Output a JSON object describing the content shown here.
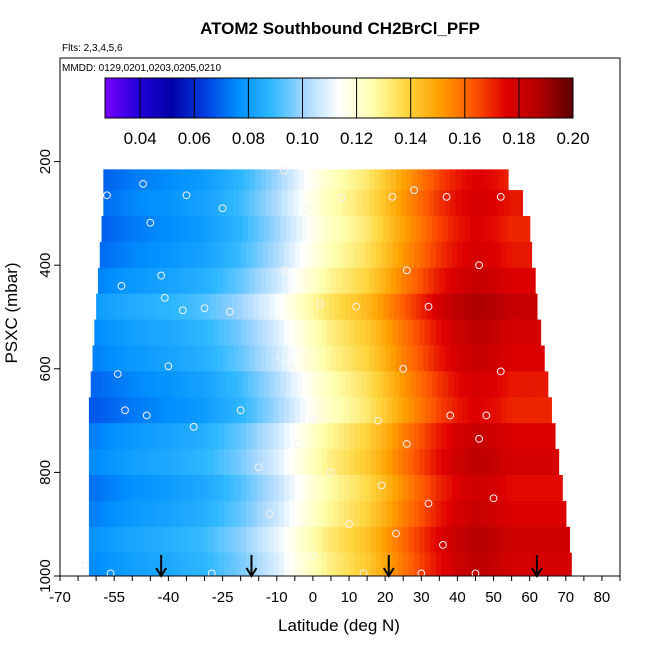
{
  "chart_data": {
    "type": "heatmap",
    "title": "ATOM2 Southbound CH2BrCl_PFP",
    "notes": {
      "flights": "Flts: 2,3,4,5,6",
      "dates": "MMDD: 0129,0201,0203,0205,0210"
    },
    "xlabel": "Latitude (deg N)",
    "ylabel": "PSXC (mbar)",
    "xlim": [
      -70,
      85
    ],
    "ylim": [
      1000,
      0
    ],
    "x_ticks": [
      -70,
      -55,
      -40,
      -25,
      -10,
      0,
      10,
      20,
      30,
      40,
      50,
      60,
      70,
      80
    ],
    "x_tick_labels": [
      "-70",
      "-55",
      "-40",
      "-25",
      "-10",
      "0",
      "10",
      "20",
      "30",
      "40",
      "50",
      "60",
      "70",
      "80"
    ],
    "y_ticks": [
      200,
      400,
      600,
      800,
      1000
    ],
    "y_tick_labels": [
      "200",
      "400",
      "600",
      "800",
      "1000"
    ],
    "colorbar": {
      "min": 0.027,
      "max": 0.2,
      "ticks": [
        0.04,
        0.06,
        0.08,
        0.1,
        0.12,
        0.14,
        0.16,
        0.18,
        0.2
      ],
      "tick_labels": [
        "0.04",
        "0.06",
        "0.08",
        "0.10",
        "0.12",
        "0.14",
        "0.16",
        "0.18",
        "0.20"
      ],
      "colors": [
        "#7a00ff",
        "#2200d8",
        "#0000a8",
        "#003fe0",
        "#0090ff",
        "#30b8ff",
        "#a8d8ff",
        "#ffffff",
        "#ffffb0",
        "#ffd640",
        "#ffa000",
        "#ff5800",
        "#e00000",
        "#b00000",
        "#5c0000"
      ]
    },
    "profile": {
      "lat": [
        -60,
        -50,
        -40,
        -30,
        -20,
        -10,
        -5,
        0,
        5,
        10,
        15,
        20,
        25,
        30,
        35,
        40,
        45,
        50,
        55
      ],
      "values": [
        0.07,
        0.075,
        0.078,
        0.082,
        0.09,
        0.102,
        0.11,
        0.118,
        0.125,
        0.13,
        0.135,
        0.143,
        0.152,
        0.16,
        0.168,
        0.174,
        0.178,
        0.176,
        0.172
      ]
    },
    "layers": [
      {
        "p": 230,
        "lat_min": -58,
        "lat_max": 54,
        "offset": -0.002
      },
      {
        "p": 280,
        "lat_min": -58,
        "lat_max": 58,
        "offset": 0.0
      },
      {
        "p": 330,
        "lat_min": -58.5,
        "lat_max": 60,
        "offset": -0.002
      },
      {
        "p": 380,
        "lat_min": -59,
        "lat_max": 60.5,
        "offset": 0.0
      },
      {
        "p": 430,
        "lat_min": -59.5,
        "lat_max": 61.5,
        "offset": 0.004
      },
      {
        "p": 480,
        "lat_min": -60,
        "lat_max": 62,
        "offset": 0.01
      },
      {
        "p": 530,
        "lat_min": -60.5,
        "lat_max": 63,
        "offset": 0.006
      },
      {
        "p": 580,
        "lat_min": -61,
        "lat_max": 64,
        "offset": 0.004
      },
      {
        "p": 630,
        "lat_min": -61.5,
        "lat_max": 65,
        "offset": 0.0
      },
      {
        "p": 680,
        "lat_min": -62,
        "lat_max": 66,
        "offset": -0.002
      },
      {
        "p": 730,
        "lat_min": -62,
        "lat_max": 67,
        "offset": 0.004
      },
      {
        "p": 780,
        "lat_min": -62,
        "lat_max": 68,
        "offset": 0.006
      },
      {
        "p": 830,
        "lat_min": -62,
        "lat_max": 69,
        "offset": 0.002
      },
      {
        "p": 880,
        "lat_min": -62,
        "lat_max": 70,
        "offset": 0.004
      },
      {
        "p": 930,
        "lat_min": -62,
        "lat_max": 71,
        "offset": 0.008
      },
      {
        "p": 980,
        "lat_min": -62,
        "lat_max": 71.5,
        "offset": 0.006
      }
    ],
    "samples": [
      {
        "lat": -57,
        "p": 265
      },
      {
        "lat": -45,
        "p": 318
      },
      {
        "lat": -35,
        "p": 265
      },
      {
        "lat": -25,
        "p": 290
      },
      {
        "lat": -2,
        "p": 290
      },
      {
        "lat": 8,
        "p": 270
      },
      {
        "lat": 22,
        "p": 268
      },
      {
        "lat": 37,
        "p": 268
      },
      {
        "lat": 52,
        "p": 268
      },
      {
        "lat": -47,
        "p": 243
      },
      {
        "lat": -8,
        "p": 218
      },
      {
        "lat": 28,
        "p": 255
      },
      {
        "lat": -53,
        "p": 440
      },
      {
        "lat": -42,
        "p": 420
      },
      {
        "lat": -8,
        "p": 410
      },
      {
        "lat": 26,
        "p": 410
      },
      {
        "lat": 46,
        "p": 400
      },
      {
        "lat": -41,
        "p": 463
      },
      {
        "lat": -36,
        "p": 487
      },
      {
        "lat": -30,
        "p": 483
      },
      {
        "lat": -23,
        "p": 490
      },
      {
        "lat": 2,
        "p": 475
      },
      {
        "lat": 12,
        "p": 480
      },
      {
        "lat": 32,
        "p": 480
      },
      {
        "lat": -54,
        "p": 610
      },
      {
        "lat": -40,
        "p": 595
      },
      {
        "lat": -9,
        "p": 580
      },
      {
        "lat": -6,
        "p": 600
      },
      {
        "lat": 25,
        "p": 600
      },
      {
        "lat": 52,
        "p": 605
      },
      {
        "lat": -52,
        "p": 680
      },
      {
        "lat": -46,
        "p": 690
      },
      {
        "lat": -33,
        "p": 712
      },
      {
        "lat": -20,
        "p": 680
      },
      {
        "lat": 0,
        "p": 700
      },
      {
        "lat": 18,
        "p": 700
      },
      {
        "lat": 38,
        "p": 690
      },
      {
        "lat": 48,
        "p": 690
      },
      {
        "lat": -4,
        "p": 745
      },
      {
        "lat": 26,
        "p": 745
      },
      {
        "lat": 46,
        "p": 735
      },
      {
        "lat": -15,
        "p": 790
      },
      {
        "lat": 5,
        "p": 800
      },
      {
        "lat": 19,
        "p": 825
      },
      {
        "lat": 32,
        "p": 860
      },
      {
        "lat": 50,
        "p": 850
      },
      {
        "lat": -12,
        "p": 880
      },
      {
        "lat": 10,
        "p": 900
      },
      {
        "lat": 23,
        "p": 918
      },
      {
        "lat": 36,
        "p": 940
      },
      {
        "lat": -63,
        "p": 980
      },
      {
        "lat": -56,
        "p": 995
      },
      {
        "lat": -28,
        "p": 995
      },
      {
        "lat": 0,
        "p": 960
      },
      {
        "lat": 14,
        "p": 995
      },
      {
        "lat": 30,
        "p": 995
      },
      {
        "lat": 45,
        "p": 995
      }
    ],
    "arrows": [
      -42,
      -17,
      21,
      62
    ]
  }
}
